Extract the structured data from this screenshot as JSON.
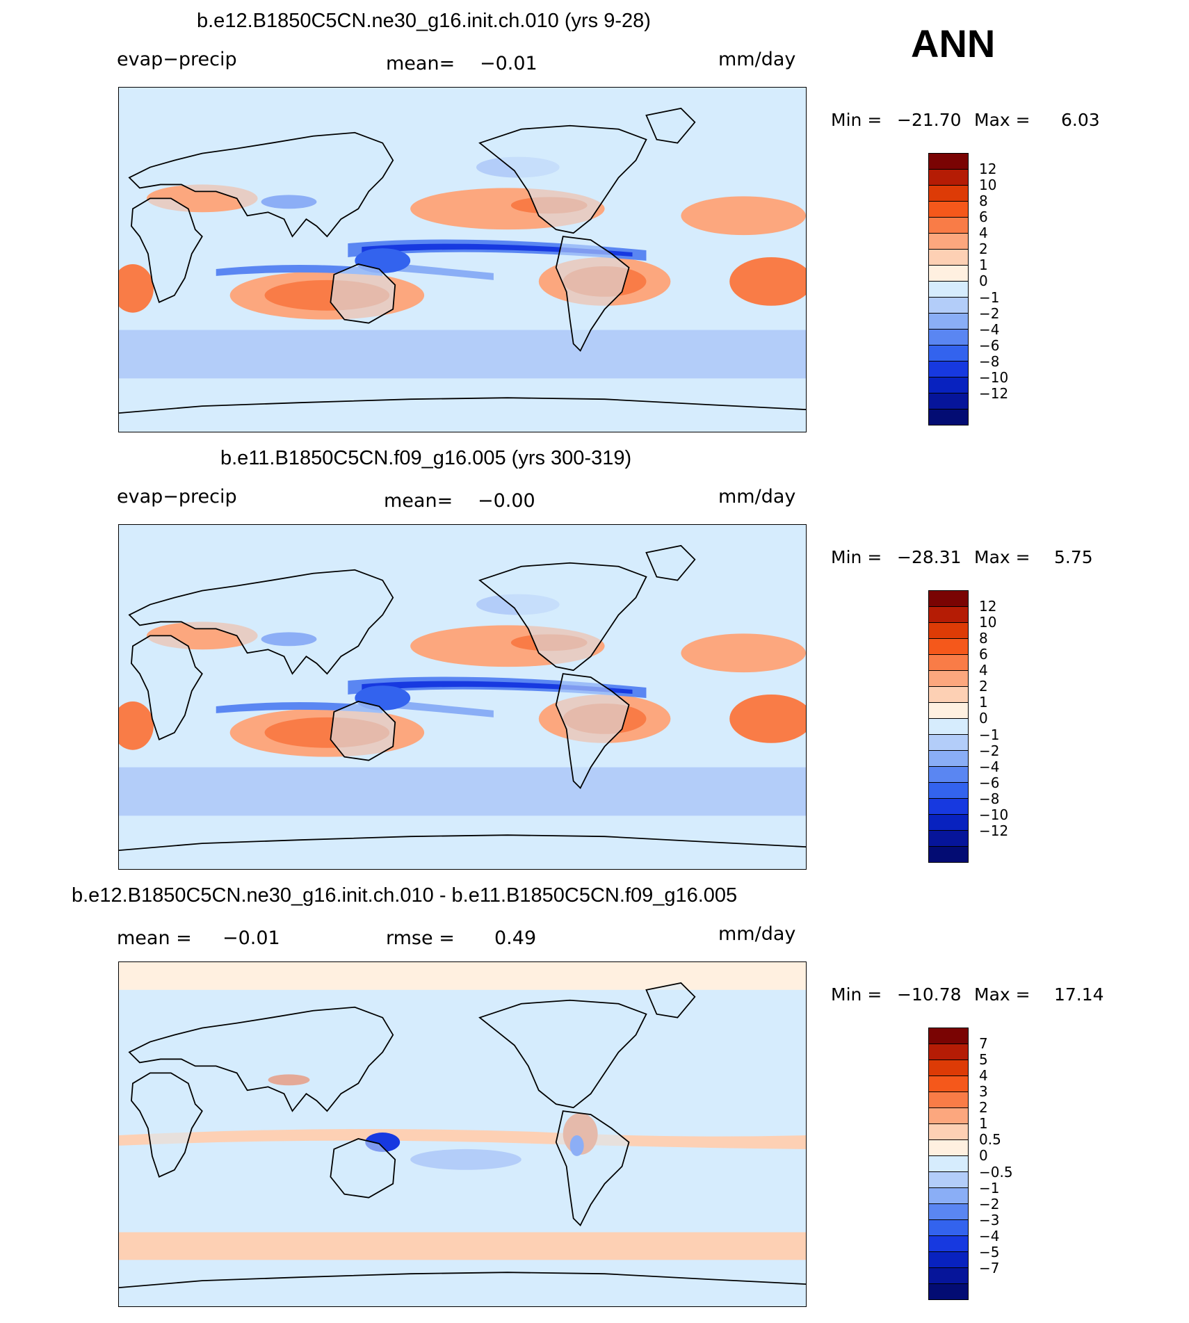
{
  "season": "ANN",
  "panels": [
    {
      "title": "b.e12.B1850C5CN.ne30_g16.init.ch.010 (yrs 9-28)",
      "left_label": "evap−precip",
      "mid_label": "mean=",
      "mid_value": "−0.01",
      "units": "mm/day",
      "min_label": "Min",
      "min_value": "−21.70",
      "max_label": "Max",
      "max_value": "6.03",
      "colorbar": {
        "colors": [
          "#7a0403",
          "#b51c05",
          "#dd3b06",
          "#f5581b",
          "#f97c47",
          "#fca77e",
          "#fdd0b4",
          "#fff0e0",
          "#d6ecfd",
          "#b3cdf9",
          "#8aaef6",
          "#5a86f2",
          "#3363ee",
          "#1739e0",
          "#0822bf",
          "#06159a",
          "#030c73"
        ],
        "labels": [
          "12",
          "10",
          "8",
          "6",
          "4",
          "2",
          "1",
          "0",
          "−1",
          "−2",
          "−4",
          "−6",
          "−8",
          "−10",
          "−12"
        ]
      }
    },
    {
      "title": "b.e11.B1850C5CN.f09_g16.005 (yrs 300-319)",
      "left_label": "evap−precip",
      "mid_label": "mean=",
      "mid_value": "−0.00",
      "units": "mm/day",
      "min_label": "Min",
      "min_value": "−28.31",
      "max_label": "Max",
      "max_value": "5.75",
      "colorbar": {
        "colors": [
          "#7a0403",
          "#b51c05",
          "#dd3b06",
          "#f5581b",
          "#f97c47",
          "#fca77e",
          "#fdd0b4",
          "#fff0e0",
          "#d6ecfd",
          "#b3cdf9",
          "#8aaef6",
          "#5a86f2",
          "#3363ee",
          "#1739e0",
          "#0822bf",
          "#06159a",
          "#030c73"
        ],
        "labels": [
          "12",
          "10",
          "8",
          "6",
          "4",
          "2",
          "1",
          "0",
          "−1",
          "−2",
          "−4",
          "−6",
          "−8",
          "−10",
          "−12"
        ]
      }
    },
    {
      "title": "b.e12.B1850C5CN.ne30_g16.init.ch.010 - b.e11.B1850C5CN.f09_g16.005",
      "left_label": "mean =",
      "left_value": "−0.01",
      "mid_label": "rmse =",
      "mid_value": "0.49",
      "units": "mm/day",
      "min_label": "Min",
      "min_value": "−10.78",
      "max_label": "Max",
      "max_value": "17.14",
      "colorbar": {
        "colors": [
          "#7a0403",
          "#b51c05",
          "#dd3b06",
          "#f5581b",
          "#f97c47",
          "#fca77e",
          "#fdd0b4",
          "#fff0e0",
          "#d6ecfd",
          "#b3cdf9",
          "#8aaef6",
          "#5a86f2",
          "#3363ee",
          "#1739e0",
          "#0822bf",
          "#06159a",
          "#030c73"
        ],
        "labels": [
          "7",
          "5",
          "4",
          "3",
          "2",
          "1",
          "0.5",
          "0",
          "−0.5",
          "−1",
          "−2",
          "−3",
          "−4",
          "−5",
          "−7"
        ]
      }
    }
  ]
}
